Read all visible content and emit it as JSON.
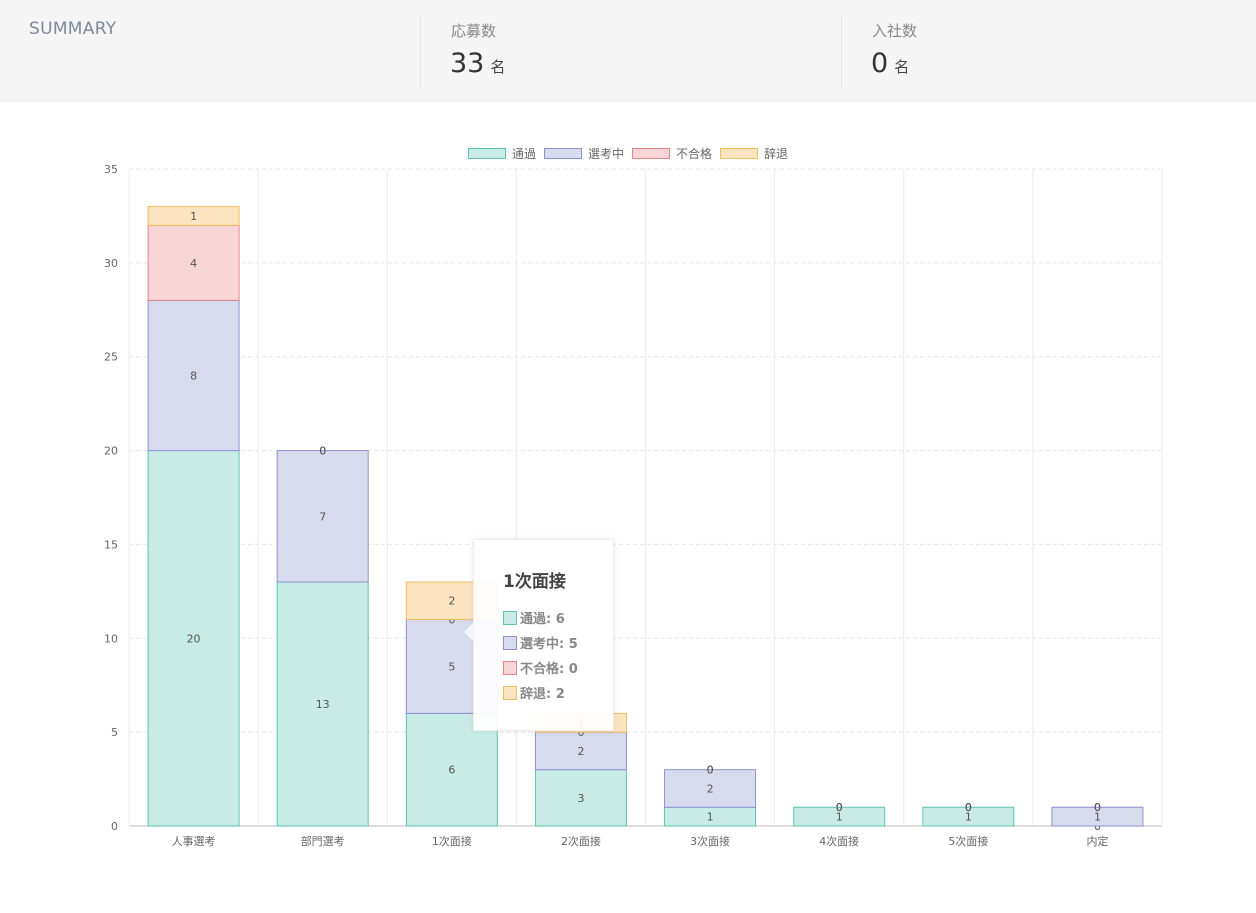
{
  "summary": {
    "title": "SUMMARY",
    "applicants": {
      "label": "応募数",
      "value": "33",
      "unit": "名"
    },
    "hires": {
      "label": "入社数",
      "value": "0",
      "unit": "名"
    }
  },
  "colors": {
    "pass": {
      "fill": "#c9ebe6",
      "stroke": "#5fc2b2"
    },
    "in_progress": {
      "fill": "#d8dbee",
      "stroke": "#8e90d0"
    },
    "rejected": {
      "fill": "#f8d6d8",
      "stroke": "#e4848c"
    },
    "declined": {
      "fill": "#fde4c0",
      "stroke": "#f0be62"
    }
  },
  "chart_data": {
    "type": "bar",
    "stacked": true,
    "categories": [
      "人事選考",
      "部門選考",
      "1次面接",
      "2次面接",
      "3次面接",
      "4次面接",
      "5次面接",
      "内定"
    ],
    "series": [
      {
        "name": "通過",
        "key": "pass",
        "values": [
          20,
          13,
          6,
          3,
          1,
          1,
          1,
          0
        ]
      },
      {
        "name": "選考中",
        "key": "in_progress",
        "values": [
          8,
          7,
          5,
          2,
          2,
          0,
          0,
          1
        ]
      },
      {
        "name": "不合格",
        "key": "rejected",
        "values": [
          4,
          0,
          0,
          0,
          0,
          0,
          0,
          0
        ]
      },
      {
        "name": "辞退",
        "key": "declined",
        "values": [
          1,
          0,
          2,
          1,
          0,
          0,
          0,
          0
        ]
      }
    ],
    "ylim": [
      0,
      35
    ],
    "yticks": [
      0,
      5,
      10,
      15,
      20,
      25,
      30,
      35
    ],
    "grid": true,
    "legend": "top-center"
  },
  "tooltip": {
    "title": "1次面接",
    "rows": [
      {
        "key": "pass",
        "text": "通過: 6"
      },
      {
        "key": "in_progress",
        "text": "選考中: 5"
      },
      {
        "key": "rejected",
        "text": "不合格: 0"
      },
      {
        "key": "declined",
        "text": "辞退: 2"
      }
    ]
  }
}
